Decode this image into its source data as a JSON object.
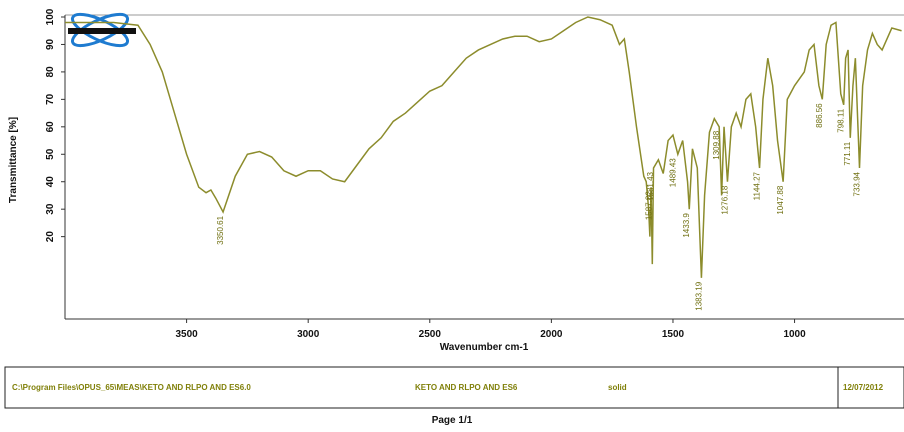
{
  "chart_data": {
    "type": "line",
    "xlabel": "Wavenumber cm-1",
    "ylabel": "Transmittance [%]",
    "xlim": [
      4000,
      550
    ],
    "ylim": [
      -10,
      100
    ],
    "xticks": [
      3500,
      3000,
      2500,
      2000,
      1500,
      1000
    ],
    "yticks": [
      20,
      30,
      40,
      50,
      60,
      70,
      80,
      90,
      100
    ],
    "color": "#8c8c2c",
    "x": [
      4000,
      3800,
      3700,
      3650,
      3600,
      3550,
      3500,
      3450,
      3420,
      3400,
      3380,
      3350,
      3300,
      3250,
      3200,
      3150,
      3100,
      3050,
      3000,
      2950,
      2900,
      2850,
      2800,
      2750,
      2700,
      2650,
      2600,
      2550,
      2500,
      2450,
      2400,
      2350,
      2300,
      2250,
      2200,
      2150,
      2100,
      2050,
      2000,
      1950,
      1900,
      1850,
      1800,
      1750,
      1720,
      1700,
      1680,
      1650,
      1620,
      1610,
      1600,
      1595,
      1590,
      1585,
      1580,
      1560,
      1540,
      1520,
      1500,
      1480,
      1460,
      1440,
      1433,
      1420,
      1400,
      1383,
      1370,
      1350,
      1330,
      1310,
      1300,
      1290,
      1276,
      1260,
      1240,
      1220,
      1200,
      1180,
      1160,
      1144,
      1130,
      1110,
      1090,
      1070,
      1047,
      1030,
      1000,
      960,
      940,
      920,
      900,
      886,
      870,
      850,
      830,
      810,
      798,
      790,
      780,
      771,
      760,
      750,
      733,
      720,
      700,
      680,
      660,
      640,
      620,
      600,
      560
    ],
    "values": [
      98,
      98,
      97,
      90,
      80,
      65,
      50,
      38,
      36,
      37,
      34,
      29,
      42,
      50,
      51,
      49,
      44,
      42,
      44,
      44,
      41,
      40,
      46,
      52,
      56,
      62,
      65,
      69,
      73,
      75,
      80,
      85,
      88,
      90,
      92,
      93,
      93,
      91,
      92,
      95,
      98,
      100,
      99,
      97,
      90,
      92,
      80,
      60,
      42,
      40,
      30,
      20,
      38,
      10,
      45,
      48,
      43,
      55,
      57,
      50,
      55,
      40,
      30,
      52,
      45,
      5,
      35,
      58,
      63,
      60,
      35,
      60,
      40,
      60,
      65,
      60,
      70,
      72,
      60,
      45,
      70,
      85,
      75,
      55,
      40,
      70,
      75,
      80,
      88,
      90,
      75,
      70,
      90,
      97,
      98,
      72,
      68,
      85,
      88,
      56,
      75,
      85,
      45,
      75,
      88,
      94,
      90,
      88,
      92,
      96,
      95
    ],
    "peak_labels": [
      3350.61,
      1587.82,
      1581.43,
      1489.43,
      1433.9,
      1383.19,
      1309.88,
      1276.18,
      1144.27,
      1047.88,
      886.56,
      798.11,
      771.11,
      733.94
    ],
    "footer": {
      "path": "C:\\Program Files\\OPUS_65\\MEAS\\KETO AND RLPO AND ES6.0",
      "sample": "KETO AND RLPO AND ES6",
      "form": "solid",
      "date": "12/07/2012"
    },
    "page": "Page 1/1"
  }
}
